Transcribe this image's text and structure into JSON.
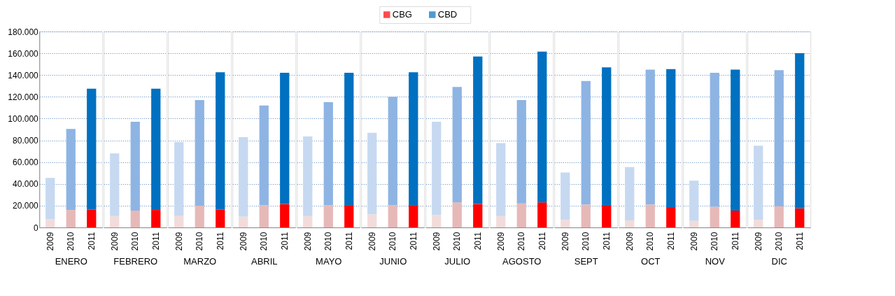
{
  "chart_data": [
    {
      "type": "bar",
      "stacked": true,
      "xlabel": "ENERO",
      "categories": [
        "2009",
        "2010",
        "2011"
      ],
      "legend": "top",
      "grid": "y",
      "ylim": [
        0,
        180000
      ],
      "yticks": [
        {
          "value": 0,
          "label": "0"
        },
        {
          "value": 20000,
          "label": "20.000"
        },
        {
          "value": 40000,
          "label": "40.000"
        },
        {
          "value": 60000,
          "label": "60.000"
        },
        {
          "value": 80000,
          "label": "80.000"
        },
        {
          "value": 100000,
          "label": "100.000"
        },
        {
          "value": 120000,
          "label": "120.000"
        },
        {
          "value": 140000,
          "label": "140.000"
        },
        {
          "value": 160000,
          "label": "160.000"
        },
        {
          "value": 180000,
          "label": "180.000"
        }
      ],
      "series": [
        {
          "name": "CBG",
          "color": "#ff0000",
          "colors": [
            "#f2dcdb",
            "#e6b9b8",
            "#ff0000"
          ],
          "values": [
            7500,
            16000,
            16500
          ]
        },
        {
          "name": "CBD",
          "color": "#0070c0",
          "colors": [
            "#c6d9f1",
            "#8eb4e3",
            "#0070c0"
          ],
          "values": [
            38000,
            74500,
            111000
          ]
        }
      ]
    },
    {
      "type": "bar",
      "stacked": true,
      "xlabel": "FEBRERO",
      "categories": [
        "2009",
        "2010",
        "2011"
      ],
      "tick_labels": "x",
      "grid": "y",
      "ylim": [
        0,
        180000
      ],
      "yticks": [
        0,
        20000,
        40000,
        60000,
        80000,
        100000,
        120000,
        140000,
        160000,
        180000
      ],
      "series": [
        {
          "colors": [
            "#f2dcdb",
            "#e6b9b8",
            "#ff0000"
          ],
          "values": [
            10500,
            15500,
            16000
          ]
        },
        {
          "colors": [
            "#c6d9f1",
            "#8eb4e3",
            "#0070c0"
          ],
          "values": [
            57500,
            81500,
            111500
          ]
        }
      ]
    },
    {
      "type": "bar",
      "stacked": true,
      "xlabel": "MARZO",
      "categories": [
        "2009",
        "2010",
        "2011"
      ],
      "tick_labels": "x",
      "grid": "y",
      "ylim": [
        0,
        180000
      ],
      "yticks": [
        0,
        20000,
        40000,
        60000,
        80000,
        100000,
        120000,
        140000,
        160000,
        180000
      ],
      "series": [
        {
          "colors": [
            "#f2dcdb",
            "#e6b9b8",
            "#ff0000"
          ],
          "values": [
            11000,
            20000,
            16500
          ]
        },
        {
          "colors": [
            "#c6d9f1",
            "#8eb4e3",
            "#0070c0"
          ],
          "values": [
            67500,
            97000,
            126000
          ]
        }
      ]
    },
    {
      "type": "bar",
      "stacked": true,
      "xlabel": "ABRIL",
      "categories": [
        "2009",
        "2010",
        "2011"
      ],
      "tick_labels": "x",
      "grid": "y",
      "ylim": [
        0,
        180000
      ],
      "yticks": [
        0,
        20000,
        40000,
        60000,
        80000,
        100000,
        120000,
        140000,
        160000,
        180000
      ],
      "series": [
        {
          "colors": [
            "#f2dcdb",
            "#e6b9b8",
            "#ff0000"
          ],
          "values": [
            10000,
            20500,
            21500
          ]
        },
        {
          "colors": [
            "#c6d9f1",
            "#8eb4e3",
            "#0070c0"
          ],
          "values": [
            73000,
            91500,
            120500
          ]
        }
      ]
    },
    {
      "type": "bar",
      "stacked": true,
      "xlabel": "MAYO",
      "categories": [
        "2009",
        "2010",
        "2011"
      ],
      "tick_labels": "x",
      "grid": "y",
      "ylim": [
        0,
        180000
      ],
      "yticks": [
        0,
        20000,
        40000,
        60000,
        80000,
        100000,
        120000,
        140000,
        160000,
        180000
      ],
      "series": [
        {
          "colors": [
            "#f2dcdb",
            "#e6b9b8",
            "#ff0000"
          ],
          "values": [
            10500,
            20500,
            20500
          ]
        },
        {
          "colors": [
            "#c6d9f1",
            "#8eb4e3",
            "#0070c0"
          ],
          "values": [
            73000,
            94500,
            121500
          ]
        }
      ]
    },
    {
      "type": "bar",
      "stacked": true,
      "xlabel": "JUNIO",
      "categories": [
        "2009",
        "2010",
        "2011"
      ],
      "tick_labels": "x",
      "grid": "y",
      "ylim": [
        0,
        180000
      ],
      "yticks": [
        0,
        20000,
        40000,
        60000,
        80000,
        100000,
        120000,
        140000,
        160000,
        180000
      ],
      "series": [
        {
          "colors": [
            "#f2dcdb",
            "#e6b9b8",
            "#ff0000"
          ],
          "values": [
            12000,
            20500,
            20500
          ]
        },
        {
          "colors": [
            "#c6d9f1",
            "#8eb4e3",
            "#0070c0"
          ],
          "values": [
            75000,
            99500,
            122000
          ]
        }
      ]
    },
    {
      "type": "bar",
      "stacked": true,
      "xlabel": "JULIO",
      "categories": [
        "2009",
        "2010",
        "2011"
      ],
      "tick_labels": "x",
      "grid": "y",
      "ylim": [
        0,
        180000
      ],
      "yticks": [
        0,
        20000,
        40000,
        60000,
        80000,
        100000,
        120000,
        140000,
        160000,
        180000
      ],
      "series": [
        {
          "colors": [
            "#f2dcdb",
            "#e6b9b8",
            "#ff0000"
          ],
          "values": [
            11500,
            23000,
            21500
          ]
        },
        {
          "colors": [
            "#c6d9f1",
            "#8eb4e3",
            "#0070c0"
          ],
          "values": [
            85500,
            106000,
            135500
          ]
        }
      ]
    },
    {
      "type": "bar",
      "stacked": true,
      "xlabel": "AGOSTO",
      "categories": [
        "2009",
        "2010",
        "2011"
      ],
      "tick_labels": "x",
      "grid": "y",
      "ylim": [
        0,
        180000
      ],
      "yticks": [
        0,
        20000,
        40000,
        60000,
        80000,
        100000,
        120000,
        140000,
        160000,
        180000
      ],
      "series": [
        {
          "colors": [
            "#f2dcdb",
            "#e6b9b8",
            "#ff0000"
          ],
          "values": [
            10500,
            22000,
            23000
          ]
        },
        {
          "colors": [
            "#c6d9f1",
            "#8eb4e3",
            "#0070c0"
          ],
          "values": [
            67000,
            95000,
            138500
          ]
        }
      ]
    },
    {
      "type": "bar",
      "stacked": true,
      "xlabel": "SEPT",
      "categories": [
        "2009",
        "2010",
        "2011"
      ],
      "tick_labels": "x",
      "grid": "y",
      "ylim": [
        0,
        180000
      ],
      "yticks": [
        0,
        20000,
        40000,
        60000,
        80000,
        100000,
        120000,
        140000,
        160000,
        180000
      ],
      "series": [
        {
          "colors": [
            "#f2dcdb",
            "#e6b9b8",
            "#ff0000"
          ],
          "values": [
            7000,
            21000,
            20000
          ]
        },
        {
          "colors": [
            "#c6d9f1",
            "#8eb4e3",
            "#0070c0"
          ],
          "values": [
            43500,
            113500,
            127000
          ]
        }
      ]
    },
    {
      "type": "bar",
      "stacked": true,
      "xlabel": "OCT",
      "categories": [
        "2009",
        "2010",
        "2011"
      ],
      "tick_labels": "x",
      "grid": "y",
      "ylim": [
        0,
        180000
      ],
      "yticks": [
        0,
        20000,
        40000,
        60000,
        80000,
        100000,
        120000,
        140000,
        160000,
        180000
      ],
      "series": [
        {
          "colors": [
            "#f2dcdb",
            "#e6b9b8",
            "#ff0000"
          ],
          "values": [
            6500,
            21000,
            18000
          ]
        },
        {
          "colors": [
            "#c6d9f1",
            "#8eb4e3",
            "#0070c0"
          ],
          "values": [
            49000,
            124000,
            127500
          ]
        }
      ]
    },
    {
      "type": "bar",
      "stacked": true,
      "xlabel": "NOV",
      "categories": [
        "2009",
        "2010",
        "2011"
      ],
      "tick_labels": "x",
      "grid": "y",
      "ylim": [
        0,
        180000
      ],
      "yticks": [
        0,
        20000,
        40000,
        60000,
        80000,
        100000,
        120000,
        140000,
        160000,
        180000
      ],
      "series": [
        {
          "colors": [
            "#f2dcdb",
            "#e6b9b8",
            "#ff0000"
          ],
          "values": [
            6000,
            19000,
            15500
          ]
        },
        {
          "colors": [
            "#c6d9f1",
            "#8eb4e3",
            "#0070c0"
          ],
          "values": [
            37000,
            123000,
            129500
          ]
        }
      ]
    },
    {
      "type": "bar",
      "stacked": true,
      "xlabel": "DIC",
      "categories": [
        "2009",
        "2010",
        "2011"
      ],
      "tick_labels": "x",
      "grid": "y",
      "ylim": [
        0,
        180000
      ],
      "yticks": [
        0,
        20000,
        40000,
        60000,
        80000,
        100000,
        120000,
        140000,
        160000,
        180000
      ],
      "series": [
        {
          "colors": [
            "#f2dcdb",
            "#e6b9b8",
            "#ff0000"
          ],
          "values": [
            7000,
            19500,
            17500
          ]
        },
        {
          "colors": [
            "#c6d9f1",
            "#8eb4e3",
            "#0070c0"
          ],
          "values": [
            68000,
            125000,
            142500
          ]
        }
      ]
    }
  ]
}
